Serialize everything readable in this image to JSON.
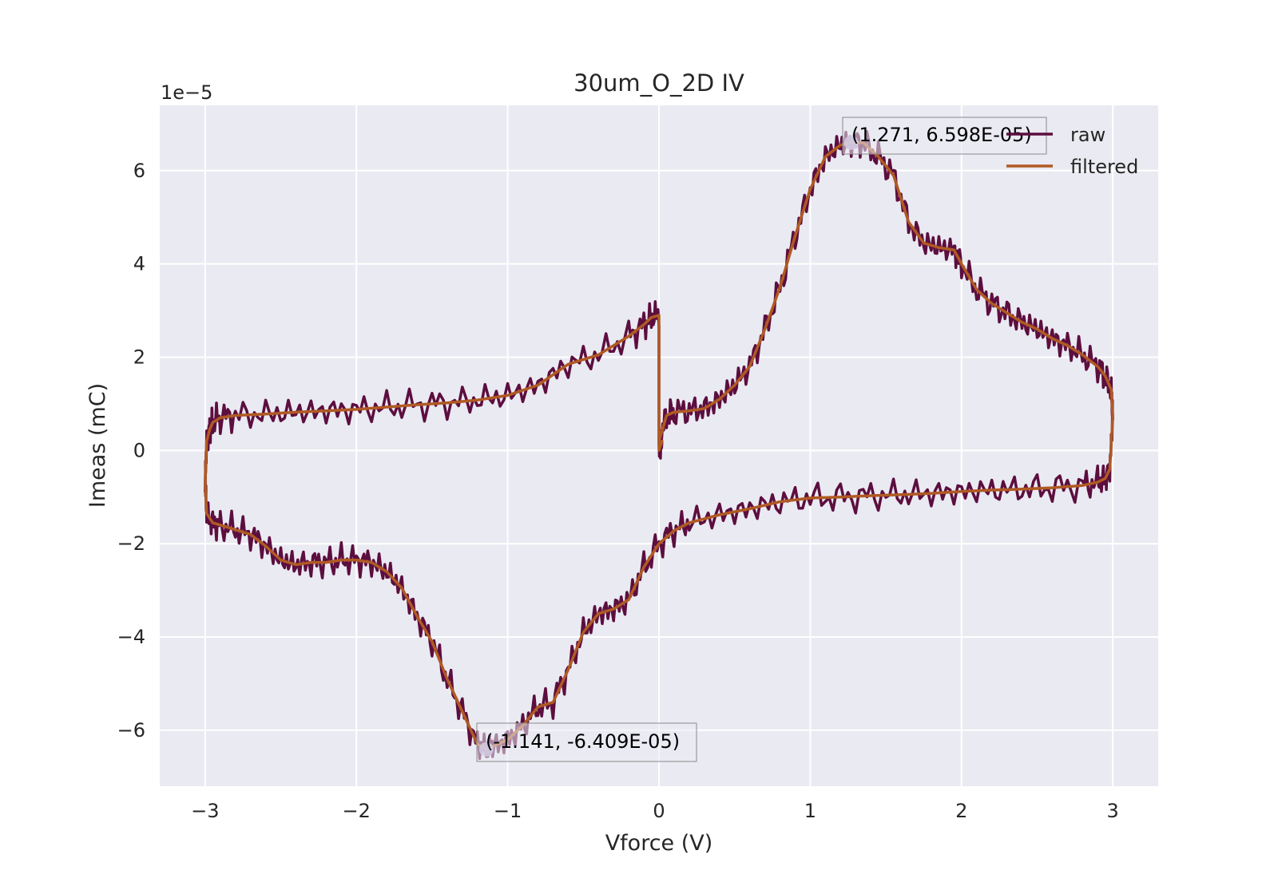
{
  "chart_data": {
    "type": "line",
    "title": "30um_O_2D IV",
    "xlabel": "Vforce (V)",
    "ylabel": "Imeas (mC)",
    "y_offset_label": "1e−5",
    "y_scale_factor": 1e-05,
    "xlim": [
      -3.3,
      3.3
    ],
    "ylim": [
      -7.2,
      7.4
    ],
    "xticks": [
      -3,
      -2,
      -1,
      0,
      1,
      2,
      3
    ],
    "xtick_labels": [
      "−3",
      "−2",
      "−1",
      "0",
      "1",
      "2",
      "3"
    ],
    "yticks": [
      -6,
      -4,
      -2,
      0,
      2,
      4,
      6
    ],
    "ytick_labels": [
      "−6",
      "−4",
      "−2",
      "0",
      "2",
      "4",
      "6"
    ],
    "grid": true,
    "background": "#eaeaf2",
    "legend_position": "upper-right",
    "series": [
      {
        "name": "raw",
        "color": "#5c0e3f",
        "noise_amplitude": 0.38,
        "x": [
          0.0,
          0.05,
          0.1,
          0.2,
          0.3,
          0.4,
          0.5,
          0.6,
          0.7,
          0.8,
          0.9,
          1.0,
          1.1,
          1.2,
          1.271,
          1.35,
          1.45,
          1.55,
          1.65,
          1.75,
          1.85,
          1.95,
          2.0,
          2.1,
          2.2,
          2.3,
          2.4,
          2.5,
          2.6,
          2.7,
          2.8,
          2.9,
          2.95,
          2.99,
          3.0,
          2.98,
          2.95,
          2.9,
          2.8,
          2.6,
          2.4,
          2.2,
          2.0,
          1.8,
          1.6,
          1.4,
          1.2,
          1.0,
          0.8,
          0.6,
          0.4,
          0.2,
          0.1,
          0.0,
          -0.1,
          -0.2,
          -0.3,
          -0.4,
          -0.5,
          -0.6,
          -0.7,
          -0.8,
          -0.9,
          -1.0,
          -1.1,
          -1.141,
          -1.2,
          -1.3,
          -1.4,
          -1.5,
          -1.6,
          -1.7,
          -1.8,
          -1.9,
          -2.0,
          -2.1,
          -2.2,
          -2.3,
          -2.4,
          -2.5,
          -2.6,
          -2.7,
          -2.8,
          -2.9,
          -2.95,
          -2.99,
          -3.0,
          -2.99,
          -2.97,
          -2.95,
          -2.9,
          -2.8,
          -2.6,
          -2.4,
          -2.2,
          -2.0,
          -1.8,
          -1.6,
          -1.4,
          -1.2,
          -1.0,
          -0.8,
          -0.6,
          -0.4,
          -0.2,
          -0.1,
          -0.05,
          0.0,
          0.0,
          0.02
        ],
        "y": [
          0.2,
          0.75,
          0.82,
          0.85,
          0.9,
          1.1,
          1.4,
          1.8,
          2.6,
          3.5,
          4.6,
          5.6,
          6.3,
          6.55,
          6.6,
          6.6,
          6.3,
          5.9,
          4.9,
          4.45,
          4.35,
          4.3,
          4.0,
          3.45,
          3.15,
          2.95,
          2.75,
          2.6,
          2.4,
          2.25,
          2.05,
          1.8,
          1.6,
          1.3,
          0.7,
          -0.4,
          -0.6,
          -0.68,
          -0.75,
          -0.8,
          -0.83,
          -0.85,
          -0.88,
          -0.92,
          -0.95,
          -0.97,
          -1.0,
          -1.02,
          -1.1,
          -1.25,
          -1.38,
          -1.55,
          -1.72,
          -2.0,
          -2.5,
          -3.2,
          -3.4,
          -3.5,
          -3.9,
          -4.7,
          -5.4,
          -5.5,
          -5.9,
          -6.2,
          -6.35,
          -6.41,
          -6.3,
          -5.6,
          -4.9,
          -4.1,
          -3.55,
          -2.95,
          -2.6,
          -2.4,
          -2.35,
          -2.35,
          -2.4,
          -2.4,
          -2.45,
          -2.35,
          -2.05,
          -1.8,
          -1.7,
          -1.6,
          -1.55,
          -1.35,
          -0.7,
          0.2,
          0.45,
          0.6,
          0.7,
          0.75,
          0.78,
          0.82,
          0.85,
          0.88,
          0.93,
          0.98,
          1.02,
          1.08,
          1.18,
          1.4,
          1.85,
          2.05,
          2.45,
          2.7,
          2.85,
          2.9,
          0.0,
          0.2
        ]
      },
      {
        "name": "filtered",
        "color": "#b05a23",
        "x": [
          0.0,
          0.05,
          0.1,
          0.2,
          0.3,
          0.4,
          0.5,
          0.6,
          0.7,
          0.8,
          0.9,
          1.0,
          1.1,
          1.2,
          1.271,
          1.35,
          1.45,
          1.55,
          1.65,
          1.75,
          1.85,
          1.95,
          2.0,
          2.1,
          2.2,
          2.3,
          2.4,
          2.5,
          2.6,
          2.7,
          2.8,
          2.9,
          2.95,
          2.99,
          3.0,
          2.98,
          2.95,
          2.9,
          2.8,
          2.6,
          2.4,
          2.2,
          2.0,
          1.8,
          1.6,
          1.4,
          1.2,
          1.0,
          0.8,
          0.6,
          0.4,
          0.2,
          0.1,
          0.0,
          -0.1,
          -0.2,
          -0.3,
          -0.4,
          -0.5,
          -0.6,
          -0.7,
          -0.8,
          -0.9,
          -1.0,
          -1.1,
          -1.141,
          -1.2,
          -1.3,
          -1.4,
          -1.5,
          -1.6,
          -1.7,
          -1.8,
          -1.9,
          -2.0,
          -2.1,
          -2.2,
          -2.3,
          -2.4,
          -2.5,
          -2.6,
          -2.7,
          -2.8,
          -2.9,
          -2.95,
          -2.99,
          -3.0,
          -2.99,
          -2.97,
          -2.95,
          -2.9,
          -2.8,
          -2.6,
          -2.4,
          -2.2,
          -2.0,
          -1.8,
          -1.6,
          -1.4,
          -1.2,
          -1.0,
          -0.8,
          -0.6,
          -0.4,
          -0.2,
          -0.1,
          -0.05,
          0.0,
          0.0,
          0.02
        ],
        "y": [
          0.2,
          0.75,
          0.82,
          0.85,
          0.9,
          1.1,
          1.4,
          1.8,
          2.6,
          3.5,
          4.6,
          5.6,
          6.3,
          6.55,
          6.6,
          6.6,
          6.3,
          5.9,
          4.9,
          4.45,
          4.35,
          4.3,
          4.0,
          3.45,
          3.15,
          2.95,
          2.75,
          2.6,
          2.4,
          2.25,
          2.05,
          1.8,
          1.6,
          1.3,
          0.7,
          -0.4,
          -0.6,
          -0.68,
          -0.75,
          -0.8,
          -0.83,
          -0.85,
          -0.88,
          -0.92,
          -0.95,
          -0.97,
          -1.0,
          -1.02,
          -1.1,
          -1.25,
          -1.38,
          -1.55,
          -1.72,
          -2.0,
          -2.5,
          -3.2,
          -3.4,
          -3.5,
          -3.9,
          -4.7,
          -5.4,
          -5.5,
          -5.9,
          -6.2,
          -6.35,
          -6.41,
          -6.3,
          -5.6,
          -4.9,
          -4.1,
          -3.55,
          -2.95,
          -2.6,
          -2.4,
          -2.35,
          -2.35,
          -2.4,
          -2.4,
          -2.45,
          -2.35,
          -2.05,
          -1.8,
          -1.7,
          -1.6,
          -1.55,
          -1.35,
          -0.7,
          0.2,
          0.45,
          0.6,
          0.7,
          0.75,
          0.78,
          0.82,
          0.85,
          0.88,
          0.93,
          0.98,
          1.02,
          1.08,
          1.18,
          1.4,
          1.85,
          2.05,
          2.45,
          2.7,
          2.85,
          2.9,
          0.0,
          0.2
        ]
      }
    ],
    "annotations": [
      {
        "text": "(1.271, 6.598E-05)",
        "x": 1.271,
        "y": 6.598,
        "marker_color": "#b9aed3"
      },
      {
        "text": "(-1.141, -6.409E-05)",
        "x": -1.141,
        "y": -6.409,
        "marker_color": "#b9aed3"
      }
    ]
  }
}
